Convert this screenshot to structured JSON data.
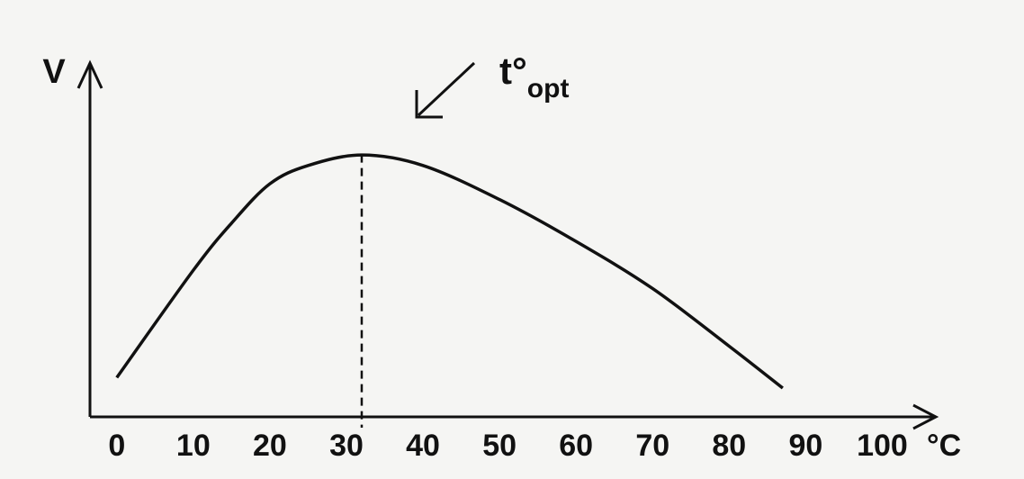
{
  "chart_data": {
    "type": "line",
    "y_label": "V",
    "x_label": "°C",
    "annotation": {
      "text": "t°",
      "subscript": "opt"
    },
    "x": [
      0,
      10,
      15,
      20,
      25,
      32,
      40,
      50,
      60,
      70,
      80,
      87
    ],
    "values": [
      1.5,
      5.6,
      7.4,
      8.9,
      9.6,
      10,
      9.6,
      8.3,
      6.7,
      4.9,
      2.7,
      1.1
    ],
    "color": "#111111",
    "optimum_x": 32,
    "xlim": [
      -3.5,
      107
    ],
    "ylim": [
      0,
      12
    ],
    "xticks": [
      0,
      10,
      20,
      30,
      40,
      50,
      60,
      70,
      80,
      90,
      100
    ]
  }
}
